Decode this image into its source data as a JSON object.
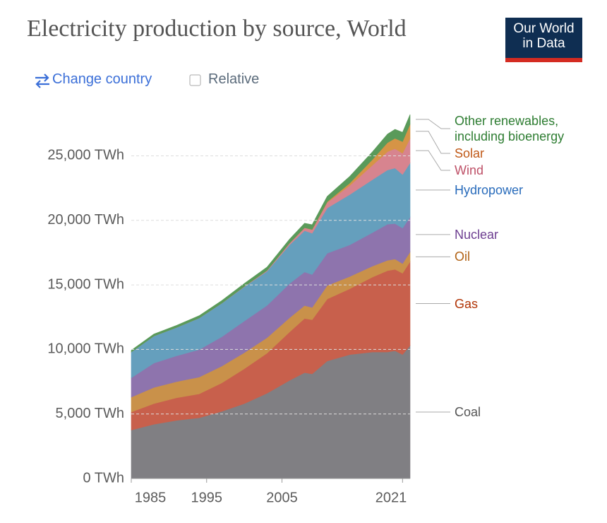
{
  "header": {
    "title": "Electricity production by source, World",
    "logo": "Our World in Data"
  },
  "controls": {
    "change_country": "Change country",
    "relative": "Relative"
  },
  "chart_data": {
    "type": "stacked_area",
    "x": [
      1985,
      1988,
      1991,
      1994,
      1997,
      2000,
      2003,
      2006,
      2008,
      2009,
      2011,
      2014,
      2017,
      2019,
      2020,
      2021,
      2022
    ],
    "xlim": [
      1985,
      2022
    ],
    "xticks": [
      1985,
      1995,
      2005,
      2021
    ],
    "ylim": [
      0,
      28200
    ],
    "yticks": [
      {
        "value": 0,
        "label": "0 TWh"
      },
      {
        "value": 5000,
        "label": "5,000 TWh"
      },
      {
        "value": 10000,
        "label": "10,000 TWh"
      },
      {
        "value": 15000,
        "label": "15,000 TWh"
      },
      {
        "value": 20000,
        "label": "20,000 TWh"
      },
      {
        "value": 25000,
        "label": "25,000 TWh"
      }
    ],
    "grid": true,
    "series": [
      {
        "name": "Coal",
        "color": "#807f83",
        "label_color": "#555555",
        "values": [
          3750,
          4200,
          4500,
          4700,
          5200,
          5800,
          6600,
          7600,
          8200,
          8100,
          9100,
          9600,
          9800,
          9800,
          9900,
          9600,
          10300
        ]
      },
      {
        "name": "Gas",
        "color": "#c8604c",
        "label_color": "#b13507",
        "values": [
          1400,
          1600,
          1750,
          1850,
          2200,
          2700,
          3100,
          3750,
          4200,
          4200,
          4800,
          5100,
          5800,
          6300,
          6300,
          6300,
          6500
        ]
      },
      {
        "name": "Oil",
        "color": "#c9914a",
        "label_color": "#b16214",
        "values": [
          1150,
          1250,
          1250,
          1300,
          1300,
          1250,
          1200,
          1100,
          1000,
          950,
          1050,
          950,
          850,
          800,
          800,
          750,
          750
        ]
      },
      {
        "name": "Nuclear",
        "color": "#8e74ad",
        "label_color": "#6d3e91",
        "values": [
          1500,
          1890,
          2000,
          2130,
          2270,
          2450,
          2500,
          2650,
          2600,
          2550,
          2500,
          2450,
          2600,
          2800,
          2750,
          2750,
          2700
        ]
      },
      {
        "name": "Hydropower",
        "color": "#659fbd",
        "label_color": "#286bbb",
        "values": [
          2000,
          2100,
          2200,
          2450,
          2600,
          2650,
          2650,
          3000,
          3200,
          3200,
          3500,
          3900,
          4100,
          4200,
          4300,
          4150,
          4200
        ]
      },
      {
        "name": "Wind",
        "color": "#d7848f",
        "label_color": "#be5168",
        "values": [
          0,
          0,
          0,
          0,
          10,
          30,
          60,
          130,
          220,
          275,
          430,
          700,
          1120,
          1420,
          1500,
          1650,
          1900
        ]
      },
      {
        "name": "Solar",
        "color": "#d69446",
        "label_color": "#c05917",
        "values": [
          0,
          0,
          0,
          0,
          0,
          0,
          0,
          5,
          10,
          20,
          60,
          190,
          440,
          700,
          800,
          900,
          1100
        ]
      },
      {
        "name": "Other renewables, including bioenergy",
        "color": "#5a9a5a",
        "label_color": "#2e7d32",
        "values": [
          130,
          150,
          160,
          180,
          200,
          230,
          260,
          300,
          350,
          370,
          420,
          520,
          600,
          660,
          700,
          720,
          750
        ]
      }
    ]
  }
}
